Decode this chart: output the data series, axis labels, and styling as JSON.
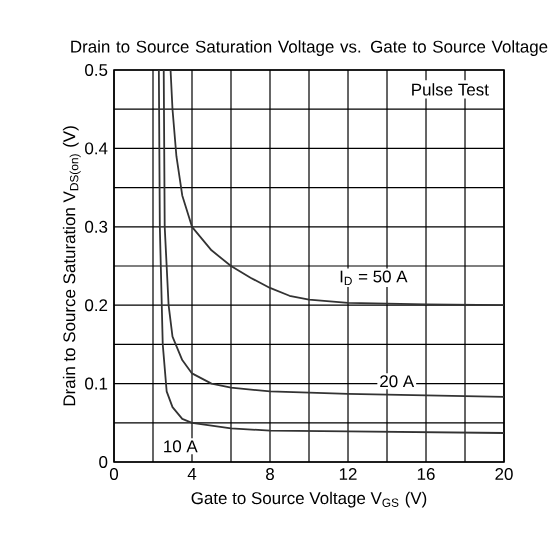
{
  "chart_data": {
    "type": "line",
    "title": "Drain to Source Saturation Voltage vs. Gate to Source Voltage",
    "xlabel": "Gate to Source Voltage   V$_{GS}$   (V)",
    "ylabel": "Drain to Source Saturation   V$_{DS(on)}$   (V)",
    "xlim": [
      0,
      20
    ],
    "ylim": [
      0,
      0.5
    ],
    "xticks": [
      0,
      {
        "value": 2,
        "label": null
      },
      4,
      {
        "value": 6,
        "label": null
      },
      8,
      {
        "value": 10,
        "label": null
      },
      12,
      {
        "value": 14,
        "label": null
      },
      16,
      {
        "value": 18,
        "label": null
      },
      20
    ],
    "yticks": [
      0,
      {
        "value": 0.05,
        "label": null
      },
      0.1,
      {
        "value": 0.15,
        "label": null
      },
      0.2,
      {
        "value": 0.25,
        "label": null
      },
      0.3,
      {
        "value": 0.35,
        "label": null
      },
      0.4,
      {
        "value": 0.45,
        "label": null
      },
      0.5
    ],
    "grid": true,
    "marker": "none",
    "line_style": "solid",
    "series": [
      {
        "name": "I$_{D}$ = 50 A",
        "color": "#333333",
        "x": [
          2.9,
          3.0,
          3.2,
          3.5,
          4,
          5,
          6,
          7,
          8,
          9,
          10,
          12,
          14,
          16,
          20
        ],
        "values": [
          0.5,
          0.45,
          0.39,
          0.34,
          0.3,
          0.27,
          0.25,
          0.235,
          0.222,
          0.212,
          0.207,
          0.203,
          0.202,
          0.201,
          0.2
        ]
      },
      {
        "name": "20 A",
        "color": "#333333",
        "x": [
          2.55,
          2.6,
          2.8,
          3,
          3.5,
          4,
          5,
          6,
          8,
          12,
          16,
          20
        ],
        "values": [
          0.5,
          0.3,
          0.2,
          0.16,
          0.13,
          0.113,
          0.1,
          0.095,
          0.09,
          0.087,
          0.085,
          0.083
        ]
      },
      {
        "name": "10 A",
        "color": "#333333",
        "x": [
          2.3,
          2.35,
          2.5,
          2.7,
          3,
          3.5,
          4,
          6,
          8,
          12,
          20
        ],
        "values": [
          0.5,
          0.3,
          0.15,
          0.09,
          0.07,
          0.055,
          0.05,
          0.043,
          0.04,
          0.039,
          0.037
        ]
      }
    ],
    "annotations": [
      "Pulse Test"
    ]
  }
}
